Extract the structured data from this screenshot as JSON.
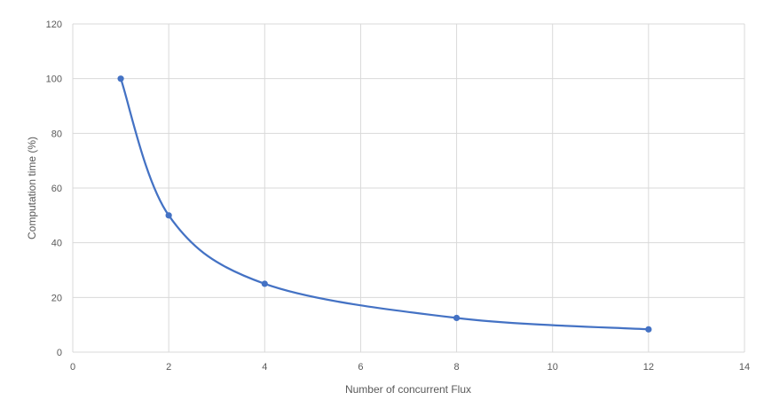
{
  "chart_data": {
    "type": "scatter",
    "title": "",
    "xlabel": "Number of concurrent Flux",
    "ylabel": "Computation time (%)",
    "xlim": [
      0,
      14
    ],
    "ylim": [
      0,
      120
    ],
    "xticks": [
      0,
      2,
      4,
      6,
      8,
      10,
      12,
      14
    ],
    "yticks": [
      0,
      20,
      40,
      60,
      80,
      100,
      120
    ],
    "grid": true,
    "smooth_line": true,
    "legend": "none",
    "series": [
      {
        "color": "#4472c4",
        "x": [
          1,
          2,
          4,
          8,
          12
        ],
        "y": [
          100,
          50,
          25,
          12.5,
          8.33
        ]
      }
    ]
  }
}
